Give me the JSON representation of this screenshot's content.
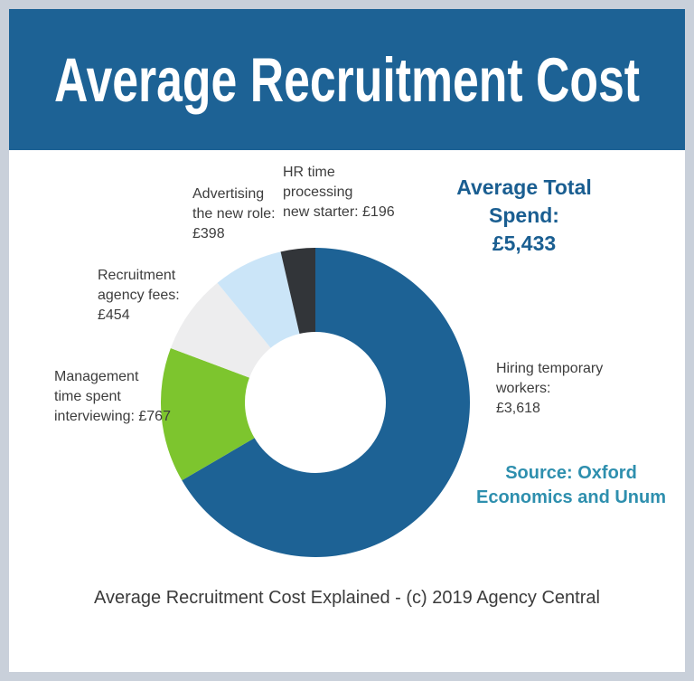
{
  "header": {
    "title": "Average Recruitment Cost"
  },
  "chart_data": {
    "type": "pie",
    "donut": true,
    "title": "Average Recruitment Cost",
    "direction": "clockwise",
    "start_angle_deg": 0,
    "total": 5433,
    "total_display": "£5,433",
    "segments": [
      {
        "id": "hiring-temporary-workers",
        "label": "Hiring temporary workers",
        "value": 3618,
        "display": "£3,618",
        "color": "#1d6295"
      },
      {
        "id": "management-time-interviewing",
        "label": "Management time spent interviewing",
        "value": 767,
        "display": "£767",
        "color": "#7dc52e"
      },
      {
        "id": "recruitment-agency-fees",
        "label": "Recruitment agency fees",
        "value": 454,
        "display": "£454",
        "color": "#ededee"
      },
      {
        "id": "advertising-new-role",
        "label": "Advertising the new role",
        "value": 398,
        "display": "£398",
        "color": "#cbe5f8"
      },
      {
        "id": "hr-time-processing-new-starter",
        "label": "HR time processing new starter",
        "value": 196,
        "display": "£196",
        "color": "#323539"
      }
    ]
  },
  "labels": {
    "hr_time": {
      "lines": [
        "HR time",
        "processing",
        "new starter: £196"
      ]
    },
    "advertising": {
      "lines": [
        "Advertising",
        "the new role:",
        "£398"
      ]
    },
    "recruitment": {
      "lines": [
        "Recruitment",
        "agency fees:",
        "£454"
      ]
    },
    "management": {
      "lines": [
        "Management",
        "time spent",
        "interviewing: £767"
      ]
    },
    "hiring": {
      "lines": [
        "Hiring temporary",
        "workers:",
        "£3,618"
      ]
    },
    "total_spend": {
      "lines": [
        "Average Total",
        "Spend:",
        "£5,433"
      ]
    }
  },
  "source": {
    "lines": [
      "Source: Oxford",
      "Economics and Unum"
    ]
  },
  "footer": {
    "caption": "Average Recruitment Cost Explained - (c) 2019 Agency Central"
  },
  "theme": {
    "frame": "#c9d0da",
    "banner": "#1d6295",
    "title_text": "#ffffff",
    "label_text": "#3d3d3d",
    "total_text": "#1a5e91",
    "source_text": "#2e8fae",
    "footer_text": "#3b3b3b"
  }
}
